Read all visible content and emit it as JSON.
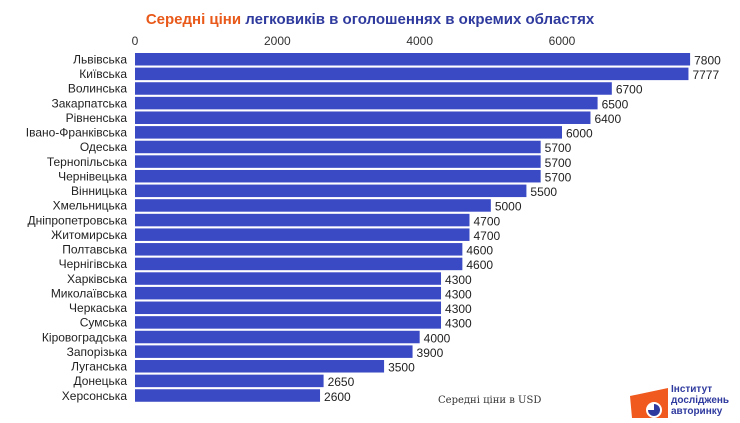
{
  "chart_data": {
    "type": "bar",
    "orientation": "horizontal",
    "title_parts": [
      "Середні ціни",
      "легковиків в оголошеннях в окремих областях"
    ],
    "xlabel": "Середні ціни в USD",
    "ylabel": "",
    "xlim": [
      0,
      7800
    ],
    "xticks": [
      0,
      2000,
      4000,
      6000
    ],
    "grid": false,
    "bar_color": "#3a49c4",
    "title_colors": [
      "#e8591a",
      "#2f3a9e"
    ],
    "categories": [
      "Львівська",
      "Київська",
      "Волинська",
      "Закарпатська",
      "Рівненська",
      "Івано-Франківська",
      "Одеська",
      "Тернопільська",
      "Чернівецька",
      "Вінницька",
      "Хмельницька",
      "Дніпропетровська",
      "Житомирська",
      "Полтавська",
      "Чернігівська",
      "Харківська",
      "Миколаївська",
      "Черкаська",
      "Сумська",
      "Кіровоградська",
      "Запорізька",
      "Луганська",
      "Донецька",
      "Херсонська"
    ],
    "values": [
      7800,
      7777,
      6700,
      6500,
      6400,
      6000,
      5700,
      5700,
      5700,
      5500,
      5000,
      4700,
      4700,
      4600,
      4600,
      4300,
      4300,
      4300,
      4300,
      4000,
      3900,
      3500,
      2650,
      2600
    ]
  },
  "logo": {
    "lines": [
      "Інститут",
      "досліджень",
      "авторинку"
    ],
    "color": "#f05a1e"
  }
}
